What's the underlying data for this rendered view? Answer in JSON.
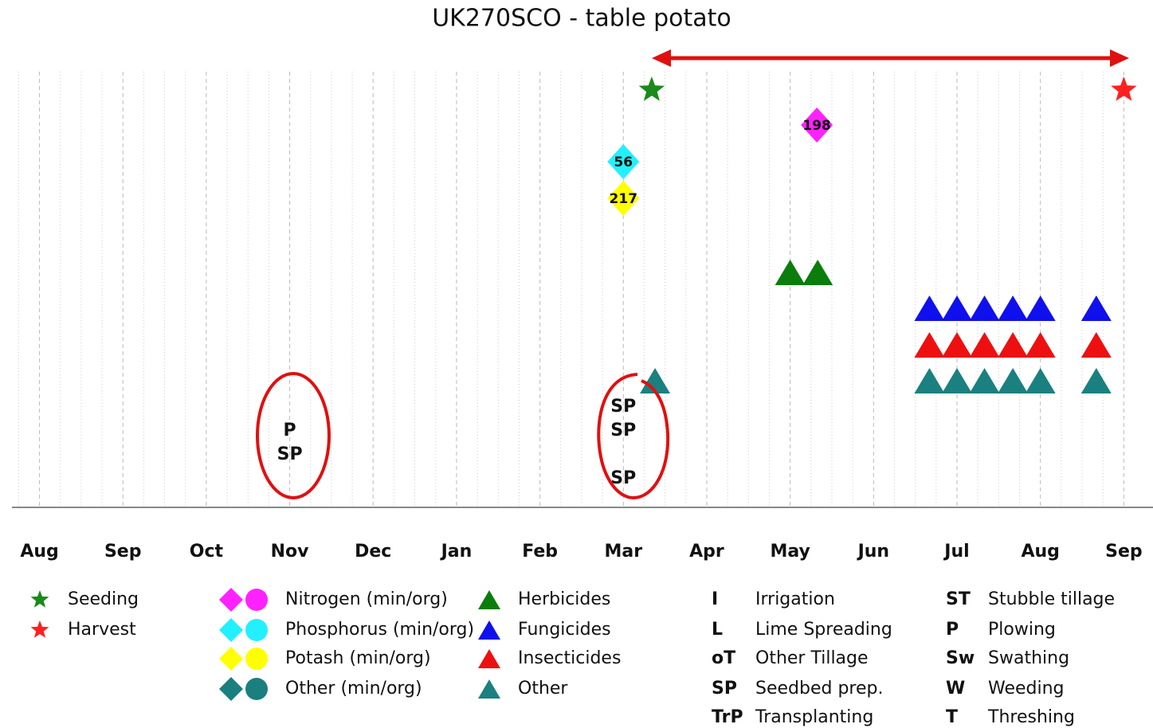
{
  "chart_data": {
    "type": "timeline",
    "title": "UK270SCO - table potato",
    "categories": [
      "Aug",
      "Sep",
      "Oct",
      "Nov",
      "Dec",
      "Jan",
      "Feb",
      "Mar",
      "Apr",
      "May",
      "Jun",
      "Jul",
      "Aug",
      "Sep"
    ],
    "xlim": [
      -0.33,
      13.35
    ],
    "grid": true,
    "series": [
      {
        "name": "Seeding",
        "marker": "star",
        "color": "#1a8a1a",
        "x": [
          7.34
        ]
      },
      {
        "name": "Harvest",
        "marker": "star",
        "color": "#ff2020",
        "x": [
          13.0
        ]
      },
      {
        "name": "Nitrogen (min/org)",
        "marker": "diamond",
        "color": "#ff22ff",
        "x": [
          9.32
        ],
        "values": [
          198
        ]
      },
      {
        "name": "Phosphorus (min/org)",
        "marker": "diamond",
        "color": "#22f0ff",
        "x": [
          7.0
        ],
        "values": [
          56
        ]
      },
      {
        "name": "Potash (min/org)",
        "marker": "diamond",
        "color": "#ffff00",
        "x": [
          7.0
        ],
        "values": [
          217
        ]
      },
      {
        "name": "Other (min/org)",
        "marker": "diamond",
        "color": "#1a7f7f",
        "x": [],
        "values": []
      },
      {
        "name": "Herbicides",
        "marker": "triangle",
        "color": "#0a7d0a",
        "x": [
          9.0,
          9.33
        ]
      },
      {
        "name": "Fungicides",
        "marker": "triangle",
        "color": "#1010ee",
        "x": [
          10.67,
          11.0,
          11.33,
          11.67,
          12.0,
          12.67
        ]
      },
      {
        "name": "Insecticides",
        "marker": "triangle",
        "color": "#ee1010",
        "x": [
          10.67,
          11.0,
          11.33,
          11.67,
          12.0,
          12.67
        ]
      },
      {
        "name": "Other",
        "marker": "triangle",
        "color": "#1a8080",
        "x": [
          7.38,
          10.67,
          11.0,
          11.33,
          11.67,
          12.0,
          12.67
        ]
      }
    ],
    "operations": [
      {
        "code": "P",
        "x": 3.0
      },
      {
        "code": "SP",
        "x": 3.0
      },
      {
        "code": "SP",
        "x": 7.0
      },
      {
        "code": "SP",
        "x": 7.0
      },
      {
        "code": "SP",
        "x": 7.0
      }
    ],
    "operation_legend": [
      {
        "code": "I",
        "name": "Irrigation"
      },
      {
        "code": "L",
        "name": "Lime Spreading"
      },
      {
        "code": "oT",
        "name": "Other Tillage"
      },
      {
        "code": "SP",
        "name": "Seedbed prep."
      },
      {
        "code": "TrP",
        "name": "Transplanting"
      },
      {
        "code": "ST",
        "name": "Stubble tillage"
      },
      {
        "code": "P",
        "name": "Plowing"
      },
      {
        "code": "Sw",
        "name": "Swathing"
      },
      {
        "code": "W",
        "name": "Weeding"
      },
      {
        "code": "T",
        "name": "Threshing"
      }
    ]
  }
}
